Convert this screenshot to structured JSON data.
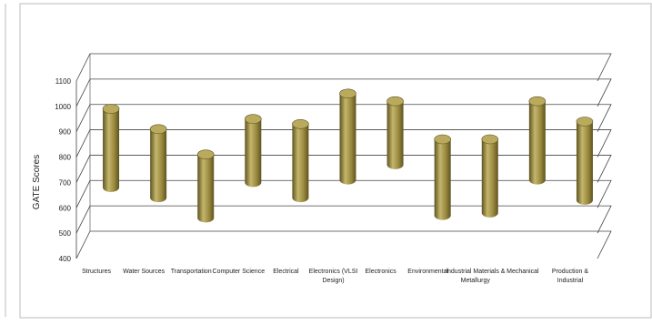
{
  "chart_data": {
    "type": "bar",
    "style": "3d-floating-range-cylinders",
    "ylabel": "GATE Scores",
    "ylim": [
      400,
      1100
    ],
    "yticks": [
      400,
      500,
      600,
      700,
      800,
      900,
      1000,
      1100
    ],
    "grid": true,
    "legend": "none",
    "categories": [
      [
        "Structures"
      ],
      [
        "Water Sources"
      ],
      [
        "Transportation"
      ],
      [
        "Computer Science"
      ],
      [
        "Electrical"
      ],
      [
        "Electronics (VLSI",
        "Design)"
      ],
      [
        "Electronics"
      ],
      [
        "Environmental"
      ],
      [
        "Industrial Materials &",
        "Metallurgy"
      ],
      [
        "Mechanical"
      ],
      [
        "Production &",
        "Industrial"
      ]
    ],
    "ranges": [
      [
        630,
        940
      ],
      [
        590,
        860
      ],
      [
        510,
        760
      ],
      [
        650,
        900
      ],
      [
        590,
        880
      ],
      [
        660,
        1000
      ],
      [
        720,
        970
      ],
      [
        520,
        820
      ],
      [
        530,
        820
      ],
      [
        660,
        970
      ],
      [
        580,
        890
      ]
    ],
    "colors": {
      "bar_light": "#c4b66d",
      "bar_mid": "#9a8a3e",
      "bar_dark": "#5e5320",
      "bar_top": "#b9aa5e",
      "grid": "#444444",
      "frame": "#bbbbbb"
    }
  }
}
